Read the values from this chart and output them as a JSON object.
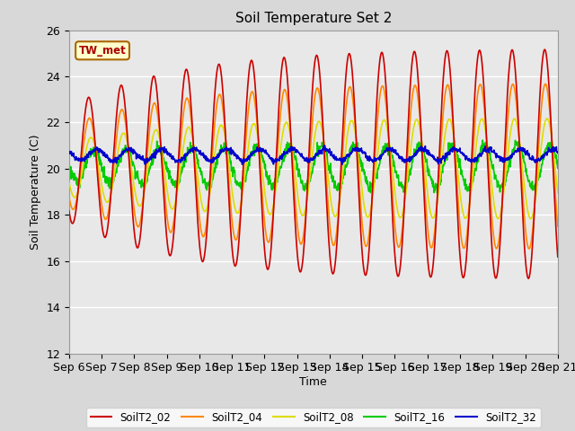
{
  "title": "Soil Temperature Set 2",
  "xlabel": "Time",
  "ylabel": "Soil Temperature (C)",
  "ylim": [
    12,
    26
  ],
  "colors": {
    "SoilT2_02": "#cc0000",
    "SoilT2_04": "#ff8800",
    "SoilT2_08": "#dddd00",
    "SoilT2_16": "#00cc00",
    "SoilT2_32": "#0000cc"
  },
  "legend_labels": [
    "SoilT2_02",
    "SoilT2_04",
    "SoilT2_08",
    "SoilT2_16",
    "SoilT2_32"
  ],
  "annotation_text": "TW_met",
  "x_tick_labels": [
    "Sep 6",
    "Sep 7",
    "Sep 8",
    "Sep 9",
    "Sep 10",
    "Sep 11",
    "Sep 12",
    "Sep 13",
    "Sep 14",
    "Sep 15",
    "Sep 16",
    "Sep 17",
    "Sep 18",
    "Sep 19",
    "Sep 20",
    "Sep 21"
  ],
  "bg_color": "#d8d8d8",
  "plot_bg": "#e8e8e8",
  "grid_color": "#ffffff",
  "linewidth": 1.2
}
